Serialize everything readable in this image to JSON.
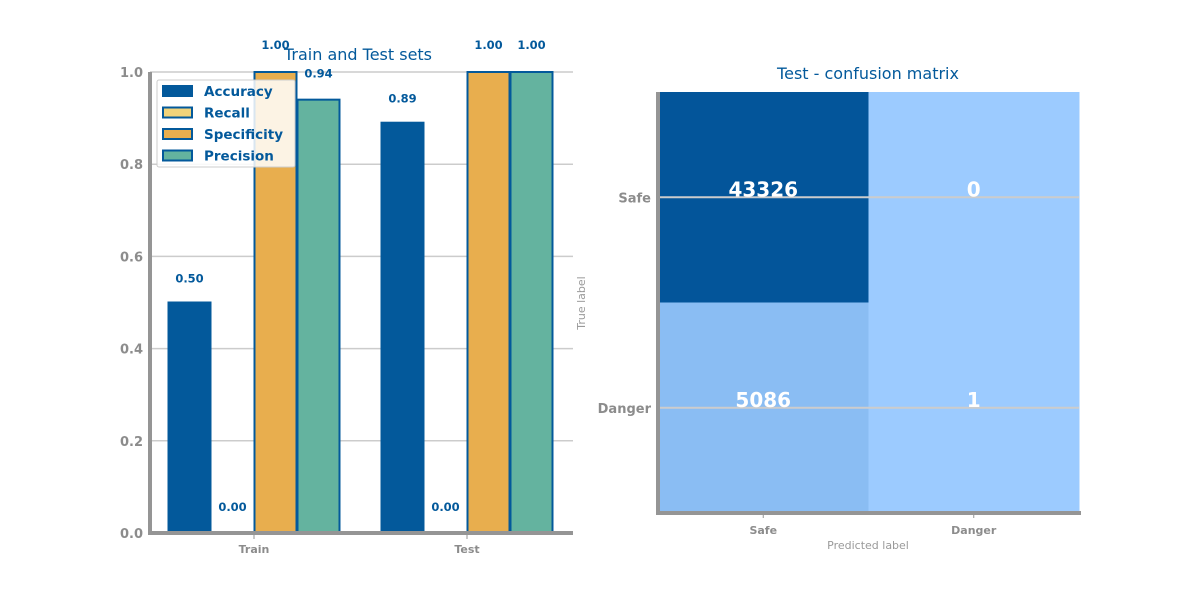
{
  "chart_data": [
    {
      "type": "bar",
      "title": "Train and Test sets",
      "xlabel": "",
      "ylabel": "",
      "categories": [
        "Train",
        "Test"
      ],
      "ylim": [
        0,
        1
      ],
      "yticks": [
        "0.0",
        "0.2",
        "0.4",
        "0.6",
        "0.8",
        "1.0"
      ],
      "grid": "horizontal",
      "legend_position": "top-left",
      "series": [
        {
          "name": "Accuracy",
          "values": [
            0.5,
            0.89
          ],
          "labels": [
            "0.50",
            "0.89"
          ],
          "color": "#03599b",
          "edge": "#03599b"
        },
        {
          "name": "Recall",
          "values": [
            0.0,
            0.0
          ],
          "labels": [
            "0.00",
            "0.00"
          ],
          "color": "#f1d37a",
          "edge": "#03599b"
        },
        {
          "name": "Specificity",
          "values": [
            1.0,
            1.0
          ],
          "labels": [
            "1.00",
            "1.00"
          ],
          "color": "#e8ae4e",
          "edge": "#03599b"
        },
        {
          "name": "Precision",
          "values": [
            0.94,
            1.0
          ],
          "labels": [
            "0.94",
            "1.00"
          ],
          "color": "#64b39f",
          "edge": "#03599b"
        }
      ]
    },
    {
      "type": "heatmap",
      "title": "Test - confusion matrix",
      "xlabel": "Predicted label",
      "ylabel": "True label",
      "x_categories": [
        "Safe",
        "Danger"
      ],
      "y_categories": [
        "Safe",
        "Danger"
      ],
      "values": [
        [
          43326,
          0
        ],
        [
          5086,
          1
        ]
      ],
      "colors": {
        "low": "#9ccbff",
        "high": "#03559a"
      }
    }
  ]
}
